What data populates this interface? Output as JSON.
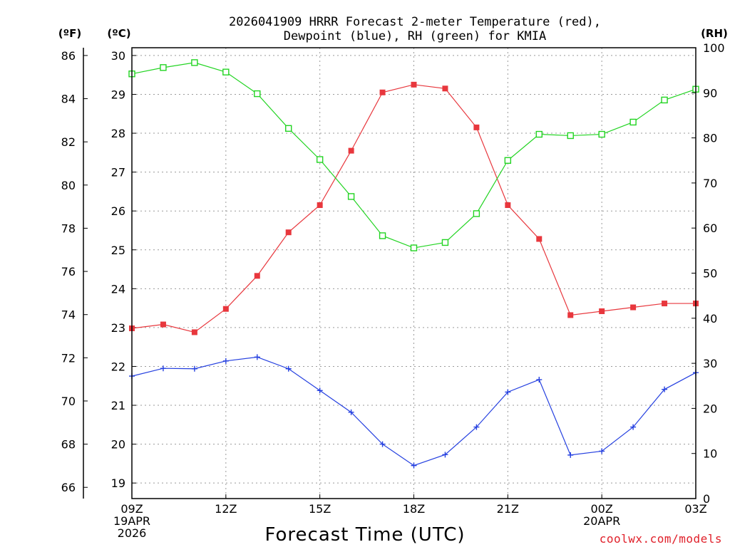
{
  "chart_data": {
    "type": "line",
    "title_lines": [
      "2026041909 HRRR Forecast 2-meter Temperature (red),",
      "Dewpoint (blue), RH (green) for KMIA"
    ],
    "unit_labels": {
      "fahrenheit": "(ºF)",
      "celsius": "(ºC)",
      "rh": "(RH)"
    },
    "xlabel": "Forecast Time (UTC)",
    "credit": "coolwx.com/models",
    "x_hours": [
      0,
      1,
      2,
      3,
      4,
      5,
      6,
      7,
      8,
      9,
      10,
      11,
      12,
      13,
      14,
      15,
      16,
      17,
      18
    ],
    "x_ticks": [
      {
        "hour": 0,
        "lines": [
          "09Z",
          "19APR",
          "2026"
        ]
      },
      {
        "hour": 3,
        "lines": [
          "12Z"
        ]
      },
      {
        "hour": 6,
        "lines": [
          "15Z"
        ]
      },
      {
        "hour": 9,
        "lines": [
          "18Z"
        ]
      },
      {
        "hour": 12,
        "lines": [
          "21Z"
        ]
      },
      {
        "hour": 15,
        "lines": [
          "00Z",
          "20APR"
        ]
      },
      {
        "hour": 18,
        "lines": [
          "03Z"
        ]
      }
    ],
    "celsius_axis": {
      "min": 18.6,
      "max": 30.2,
      "ticks": [
        19,
        20,
        21,
        22,
        23,
        24,
        25,
        26,
        27,
        28,
        29,
        30
      ]
    },
    "fahrenheit_axis": {
      "ticks": [
        66,
        68,
        70,
        72,
        74,
        76,
        78,
        80,
        82,
        84,
        86
      ]
    },
    "rh_axis": {
      "min": 0,
      "max": 100,
      "ticks": [
        0,
        10,
        20,
        30,
        40,
        50,
        60,
        70,
        80,
        90,
        100
      ]
    },
    "series": [
      {
        "name": "2-meter Temperature",
        "color": "#e8373d",
        "marker": "filled-square",
        "axis": "celsius",
        "values": [
          22.98,
          23.08,
          22.88,
          23.48,
          24.33,
          25.45,
          26.15,
          27.55,
          29.05,
          29.25,
          29.15,
          28.15,
          26.15,
          25.28,
          23.32,
          23.42,
          23.52,
          23.62,
          23.62
        ]
      },
      {
        "name": "Dewpoint",
        "color": "#2540e0",
        "marker": "plus",
        "axis": "celsius",
        "values": [
          21.75,
          21.95,
          21.94,
          22.14,
          22.24,
          21.94,
          21.38,
          20.82,
          20.0,
          19.45,
          19.73,
          20.44,
          21.34,
          21.66,
          19.72,
          19.82,
          20.44,
          21.41,
          21.84
        ]
      },
      {
        "name": "RH",
        "color": "#22d422",
        "marker": "open-square",
        "axis": "rh",
        "values": [
          94.2,
          95.6,
          96.7,
          94.6,
          89.8,
          82.1,
          75.2,
          67.0,
          58.3,
          55.6,
          56.8,
          63.2,
          75.0,
          80.8,
          80.5,
          80.8,
          83.5,
          88.4,
          90.8
        ]
      }
    ]
  }
}
